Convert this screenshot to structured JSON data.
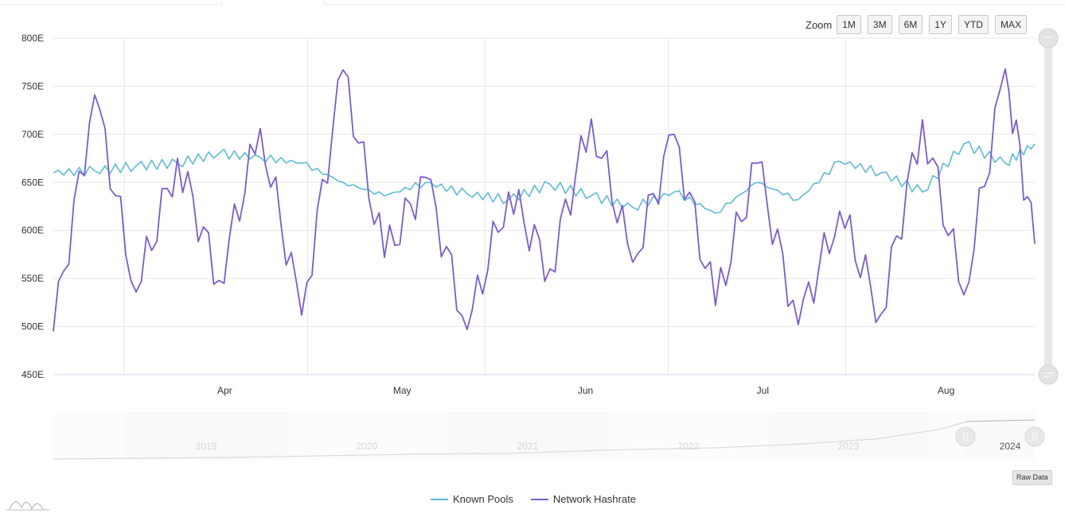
{
  "zoom": {
    "label": "Zoom",
    "buttons": [
      "1M",
      "3M",
      "6M",
      "1Y",
      "YTD",
      "MAX"
    ]
  },
  "raw_data_label": "Raw Data",
  "colors": {
    "known_pools": "#5bbcd6",
    "network_hashrate": "#7b5ad6",
    "grid": "#e6e6e6",
    "navigator_fill": "#f2f2f2",
    "navigator_line": "#bdbdbd"
  },
  "chart_data": {
    "type": "line",
    "title": "",
    "xlabel": "",
    "ylabel": "",
    "x_ticks": [
      "Apr",
      "May",
      "Jun",
      "Jul",
      "Aug"
    ],
    "y_ticks": [
      "450E",
      "500E",
      "550E",
      "600E",
      "650E",
      "700E",
      "750E",
      "800E"
    ],
    "ylim": [
      450,
      800
    ],
    "x_range": [
      "2024-03-03",
      "2024-08-16"
    ],
    "grid": true,
    "legend_position": "bottom-center",
    "series": [
      {
        "name": "Known Pools",
        "x": [
          "2024-03-03",
          "2024-03-10",
          "2024-03-17",
          "2024-03-24",
          "2024-03-31",
          "2024-04-07",
          "2024-04-14",
          "2024-04-21",
          "2024-04-28",
          "2024-05-05",
          "2024-05-12",
          "2024-05-19",
          "2024-05-26",
          "2024-06-02",
          "2024-06-09",
          "2024-06-16",
          "2024-06-23",
          "2024-06-30",
          "2024-07-07",
          "2024-07-14",
          "2024-07-21",
          "2024-07-28",
          "2024-08-04",
          "2024-08-11",
          "2024-08-16"
        ],
        "values": [
          660,
          662,
          667,
          670,
          680,
          676,
          670,
          650,
          636,
          650,
          638,
          632,
          648,
          636,
          624,
          640,
          618,
          650,
          632,
          672,
          660,
          640,
          690,
          670,
          690
        ]
      },
      {
        "name": "Network Hashrate",
        "x": [
          "2024-03-03",
          "2024-03-10",
          "2024-03-17",
          "2024-03-24",
          "2024-03-31",
          "2024-04-07",
          "2024-04-14",
          "2024-04-21",
          "2024-04-28",
          "2024-05-05",
          "2024-05-12",
          "2024-05-19",
          "2024-05-26",
          "2024-06-02",
          "2024-06-09",
          "2024-06-16",
          "2024-06-23",
          "2024-06-30",
          "2024-07-07",
          "2024-07-14",
          "2024-07-21",
          "2024-07-28",
          "2024-08-04",
          "2024-08-11",
          "2024-08-16"
        ],
        "values": [
          495,
          741,
          536,
          675,
          548,
          706,
          512,
          767,
          572,
          655,
          497,
          640,
          560,
          716,
          567,
          700,
          522,
          670,
          502,
          620,
          513,
          715,
          533,
          768,
          586
        ]
      }
    ],
    "navigator": {
      "x_ticks": [
        "2019",
        "2020",
        "2021",
        "2022",
        "2023",
        "2024"
      ]
    }
  }
}
